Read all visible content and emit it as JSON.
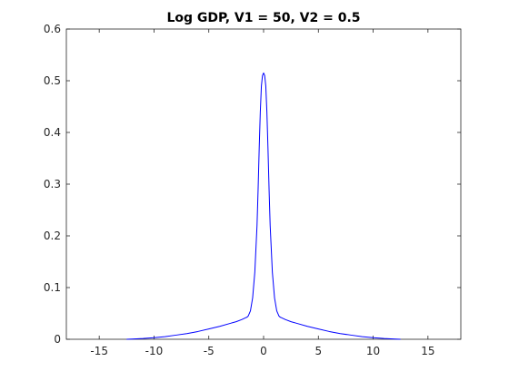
{
  "chart_data": {
    "type": "line",
    "title": "Log GDP, V1 = 50, V2 = 0.5",
    "xlabel": "",
    "ylabel": "",
    "xlim": [
      -18,
      18
    ],
    "ylim": [
      0,
      0.6
    ],
    "xticks": [
      -15,
      -10,
      -5,
      0,
      5,
      10,
      15
    ],
    "yticks": [
      0,
      0.1,
      0.2,
      0.3,
      0.4,
      0.5,
      0.6
    ],
    "grid": false,
    "legend": "none",
    "series": [
      {
        "color": "#0000ff",
        "x": [
          -12.5,
          -12,
          -11,
          -10,
          -9,
          -8,
          -7,
          -6,
          -5,
          -4,
          -3,
          -2.5,
          -2,
          -1.8,
          -1.6,
          -1.5,
          -1.4,
          -1.2,
          -1,
          -0.8,
          -0.6,
          -0.5,
          -0.4,
          -0.3,
          -0.2,
          -0.1,
          0,
          0.1,
          0.2,
          0.3,
          0.4,
          0.5,
          0.6,
          0.8,
          1,
          1.2,
          1.4,
          1.5,
          1.6,
          1.8,
          2,
          2.5,
          3,
          4,
          5,
          6,
          7,
          8,
          9,
          10,
          11,
          12,
          12.5
        ],
        "y": [
          0.0,
          0.0005,
          0.0015,
          0.003,
          0.005,
          0.008,
          0.011,
          0.015,
          0.02,
          0.025,
          0.031,
          0.034,
          0.038,
          0.04,
          0.042,
          0.043,
          0.045,
          0.055,
          0.08,
          0.13,
          0.22,
          0.29,
          0.37,
          0.44,
          0.49,
          0.51,
          0.515,
          0.51,
          0.49,
          0.44,
          0.37,
          0.29,
          0.22,
          0.13,
          0.08,
          0.055,
          0.045,
          0.043,
          0.042,
          0.04,
          0.038,
          0.034,
          0.031,
          0.025,
          0.02,
          0.015,
          0.011,
          0.008,
          0.005,
          0.003,
          0.0015,
          0.0005,
          0.0
        ]
      }
    ]
  }
}
